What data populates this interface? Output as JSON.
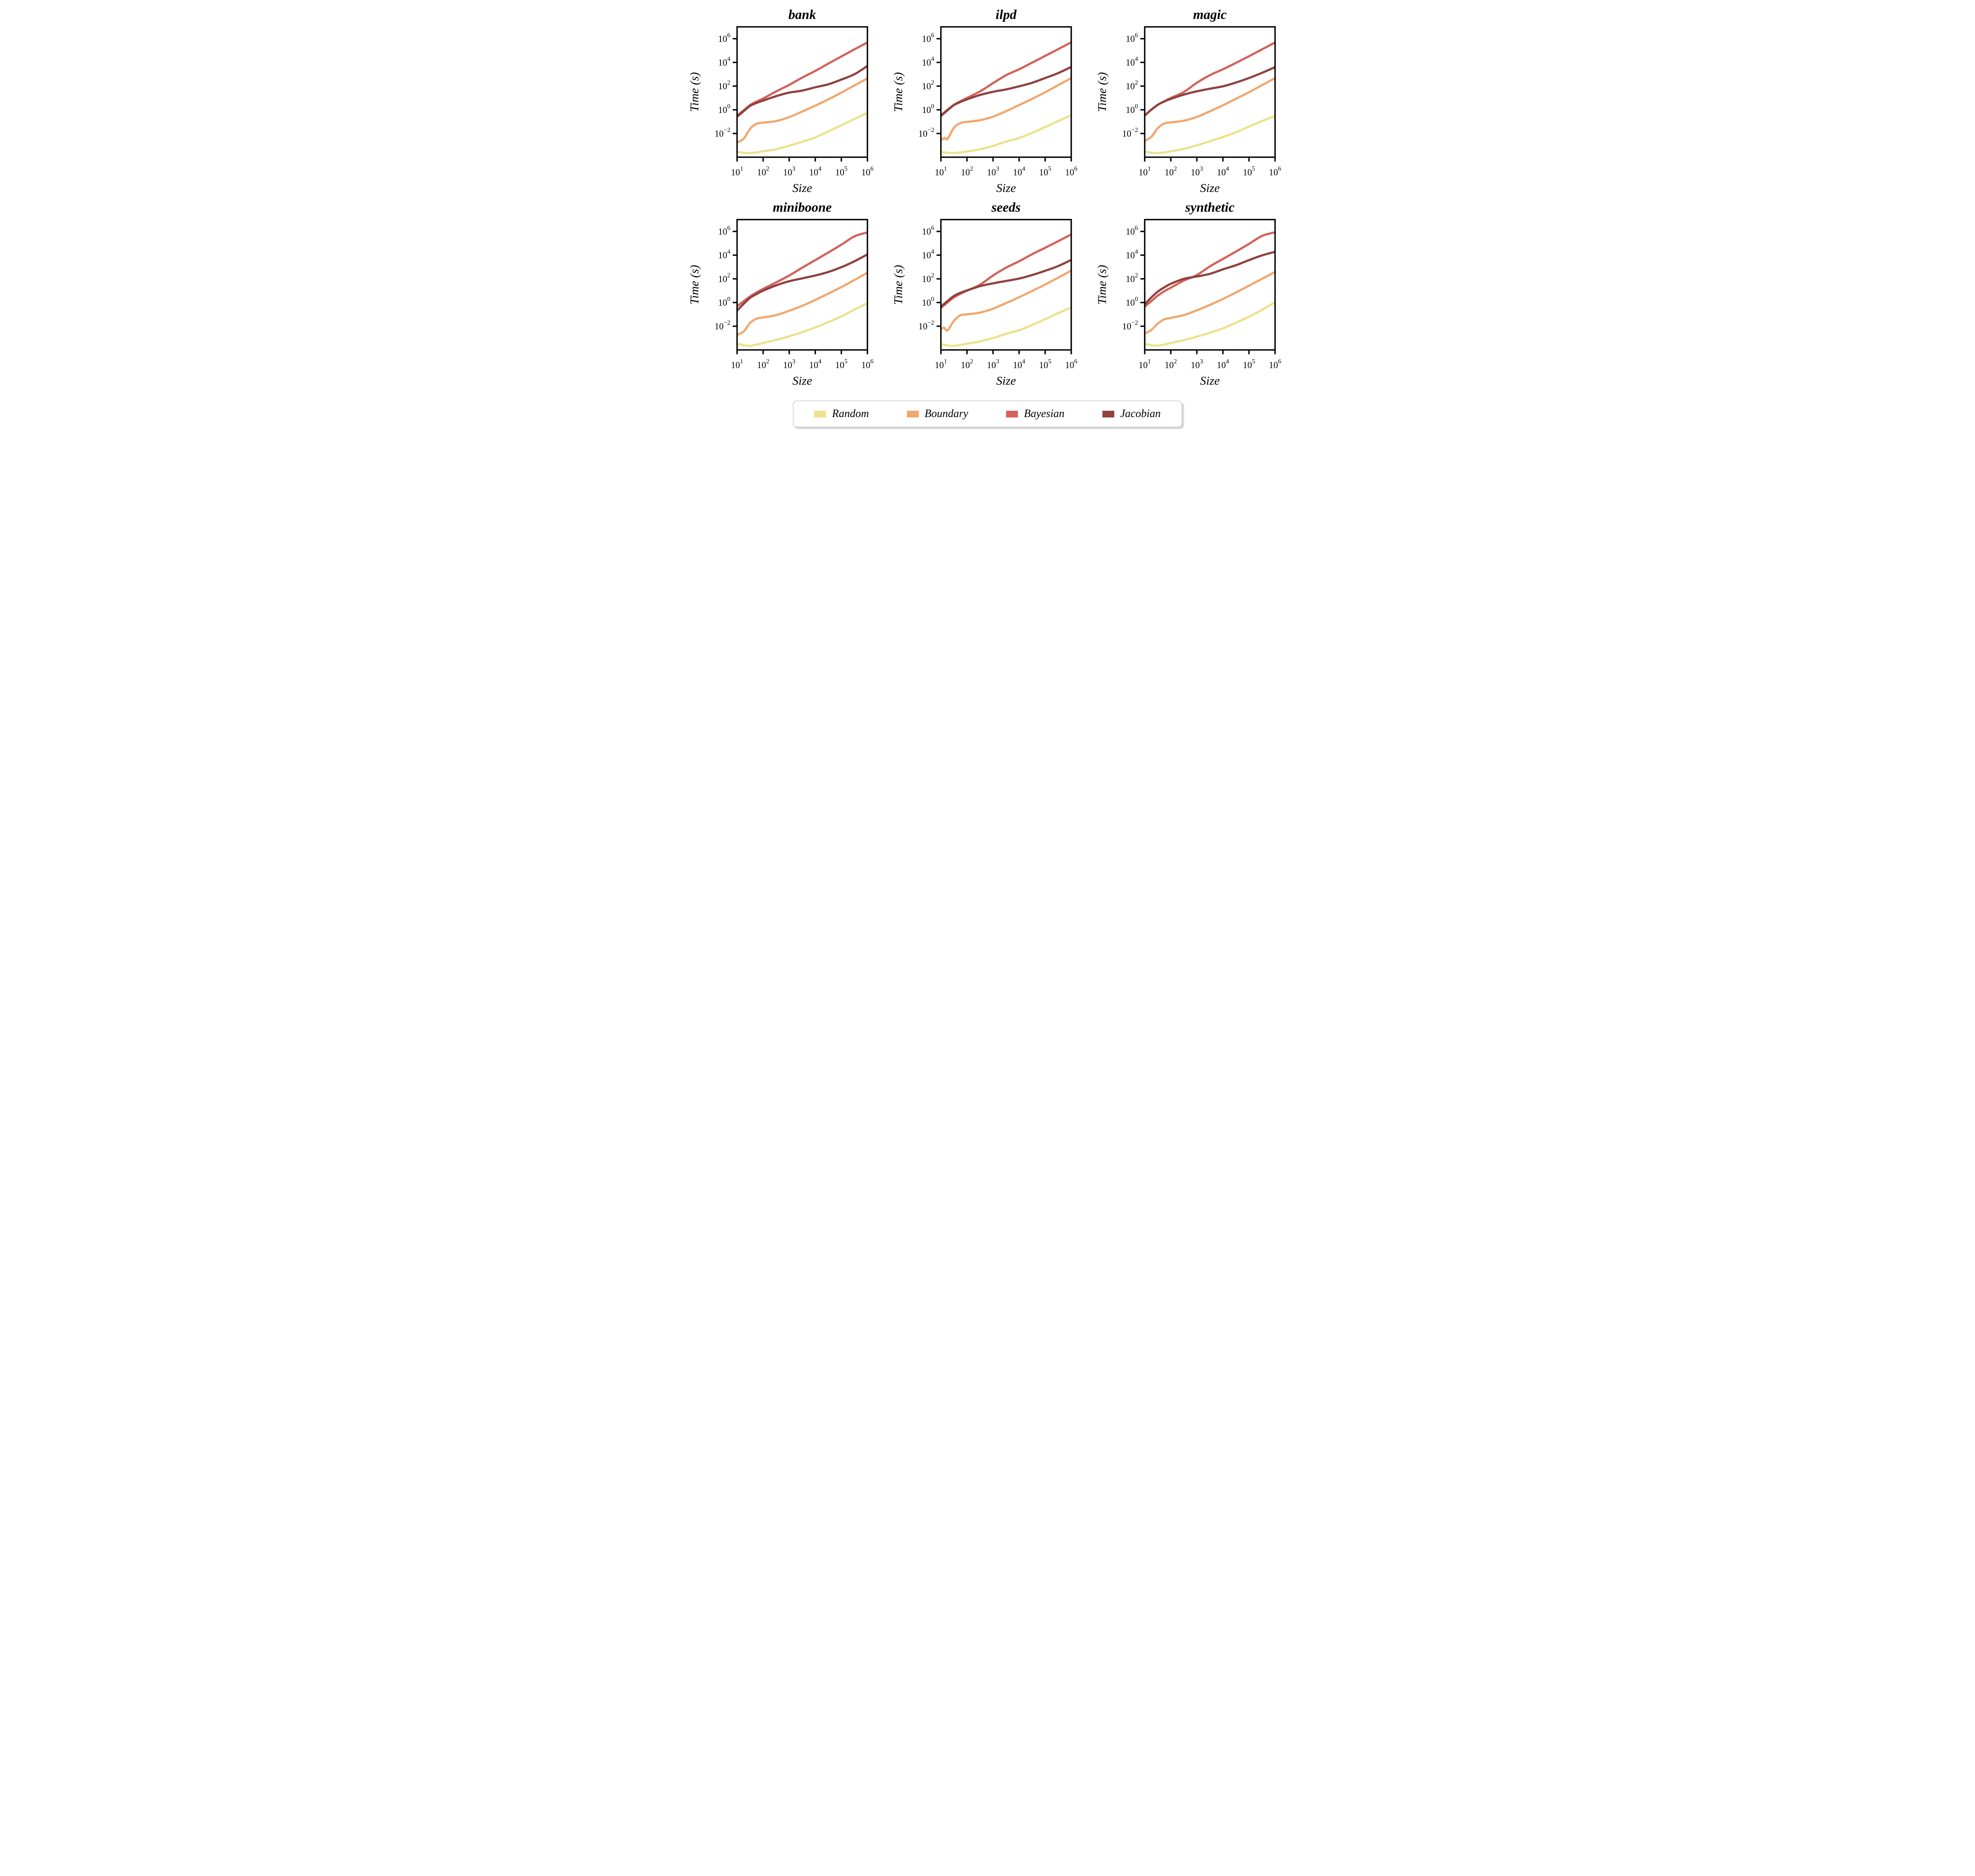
{
  "figure": {
    "rows": 2,
    "cols": 3,
    "background": "#ffffff",
    "axis_style": {
      "spine_color": "#000000",
      "spine_width": 3.5,
      "tick_length": 11,
      "tick_direction": "out",
      "font": "serif-italic-latex"
    }
  },
  "legend": {
    "position": "bottom-center",
    "border_color": "#d8d8d8",
    "items": [
      {
        "label": "Random",
        "color": "#ede28c"
      },
      {
        "label": "Boundary",
        "color": "#f1a76f"
      },
      {
        "label": "Bayesian",
        "color": "#d4615b"
      },
      {
        "label": "Jacobian",
        "color": "#8f423f"
      }
    ]
  },
  "chart_data": [
    {
      "type": "line",
      "title": "bank",
      "xlabel": "Size",
      "ylabel": "Time (s)",
      "xscale": "log",
      "yscale": "log",
      "xlim": [
        10,
        1000000
      ],
      "ylim": [
        0.0001,
        10000000
      ],
      "x_tick_exponents": [
        1,
        2,
        3,
        4,
        5,
        6
      ],
      "y_tick_exponents": [
        6,
        4,
        2,
        0,
        -2
      ],
      "grid": false,
      "series": [
        {
          "name": "Random",
          "color": "#ede28c",
          "x": [
            10,
            17.8,
            31.6,
            56.2,
            100,
            316,
            1000,
            3162,
            10000,
            31623,
            100000,
            316228,
            1000000
          ],
          "y": [
            0.000282,
            0.000234,
            0.000224,
            0.000251,
            0.000316,
            0.000468,
            0.000933,
            0.002,
            0.00468,
            0.0148,
            0.0501,
            0.166,
            0.562
          ]
        },
        {
          "name": "Boundary",
          "color": "#f1a76f",
          "x": [
            10,
            17.8,
            31.6,
            56.2,
            100,
            316,
            1000,
            3162,
            10000,
            31623,
            100000,
            316228,
            1000000
          ],
          "y": [
            0.00178,
            0.00355,
            0.0251,
            0.0661,
            0.0832,
            0.112,
            0.24,
            0.708,
            2.24,
            7.59,
            28.2,
            112,
            447
          ]
        },
        {
          "name": "Bayesian",
          "color": "#d4615b",
          "x": [
            10,
            17.8,
            31.6,
            56.2,
            100,
            316,
            1000,
            3162,
            10000,
            31623,
            100000,
            316228,
            1000000
          ],
          "y": [
            0.331,
            0.891,
            2.51,
            5.01,
            8.91,
            35.5,
            126,
            525,
            1910,
            7940,
            31600,
            126000,
            479000
          ]
        },
        {
          "name": "Jacobian",
          "color": "#8f423f",
          "x": [
            10,
            17.8,
            31.6,
            56.2,
            100,
            316,
            1000,
            3162,
            10000,
            31623,
            100000,
            316228,
            1000000
          ],
          "y": [
            0.263,
            0.759,
            2.14,
            3.8,
            6.03,
            14.1,
            28.2,
            41.7,
            79.4,
            141,
            355,
            1000,
            5010
          ]
        }
      ]
    },
    {
      "type": "line",
      "title": "ilpd",
      "xlabel": "Size",
      "ylabel": "Time (s)",
      "xscale": "log",
      "yscale": "log",
      "xlim": [
        10,
        1000000
      ],
      "ylim": [
        0.0001,
        10000000
      ],
      "x_tick_exponents": [
        1,
        2,
        3,
        4,
        5,
        6
      ],
      "y_tick_exponents": [
        6,
        4,
        2,
        0,
        -2
      ],
      "grid": false,
      "series": [
        {
          "name": "Random",
          "color": "#ede28c",
          "x": [
            10,
            17.8,
            31.6,
            56.2,
            100,
            316,
            1000,
            3162,
            10000,
            31623,
            100000,
            316228,
            1000000
          ],
          "y": [
            0.000282,
            0.000234,
            0.000224,
            0.000251,
            0.000302,
            0.000468,
            0.000891,
            0.00209,
            0.00417,
            0.0112,
            0.0355,
            0.112,
            0.355
          ]
        },
        {
          "name": "Boundary",
          "color": "#f1a76f",
          "x": [
            10,
            14,
            18,
            31.6,
            56.2,
            100,
            316,
            1000,
            3162,
            10000,
            31623,
            100000,
            316228,
            1000000
          ],
          "y": [
            0.00282,
            0.00417,
            0.00355,
            0.0302,
            0.0759,
            0.0955,
            0.132,
            0.263,
            0.759,
            2.51,
            8.32,
            30.2,
            120,
            479
          ]
        },
        {
          "name": "Bayesian",
          "color": "#d4615b",
          "x": [
            10,
            17.8,
            31.6,
            56.2,
            100,
            316,
            1000,
            3162,
            10000,
            31623,
            100000,
            316228,
            1000000
          ],
          "y": [
            0.355,
            1.0,
            2.63,
            5.25,
            10.0,
            35.5,
            178,
            832,
            2630,
            9550,
            35500,
            132000,
            501000
          ]
        },
        {
          "name": "Jacobian",
          "color": "#8f423f",
          "x": [
            10,
            17.8,
            31.6,
            56.2,
            100,
            316,
            1000,
            3162,
            10000,
            31623,
            100000,
            316228,
            1000000
          ],
          "y": [
            0.302,
            0.891,
            2.51,
            4.57,
            7.59,
            17.8,
            33.1,
            52.5,
            95.5,
            191,
            479,
            1260,
            4170
          ]
        }
      ]
    },
    {
      "type": "line",
      "title": "magic",
      "xlabel": "Size",
      "ylabel": "Time (s)",
      "xscale": "log",
      "yscale": "log",
      "xlim": [
        10,
        1000000
      ],
      "ylim": [
        0.0001,
        10000000
      ],
      "x_tick_exponents": [
        1,
        2,
        3,
        4,
        5,
        6
      ],
      "y_tick_exponents": [
        6,
        4,
        2,
        0,
        -2
      ],
      "grid": false,
      "series": [
        {
          "name": "Random",
          "color": "#ede28c",
          "x": [
            10,
            17.8,
            31.6,
            56.2,
            100,
            316,
            1000,
            3162,
            10000,
            31623,
            100000,
            316228,
            1000000
          ],
          "y": [
            0.000302,
            0.00024,
            0.000224,
            0.000251,
            0.000316,
            0.000501,
            0.001,
            0.00224,
            0.00501,
            0.0126,
            0.038,
            0.112,
            0.302
          ]
        },
        {
          "name": "Boundary",
          "color": "#f1a76f",
          "x": [
            10,
            17.8,
            31.6,
            56.2,
            100,
            316,
            1000,
            3162,
            10000,
            31623,
            100000,
            316228,
            1000000
          ],
          "y": [
            0.0024,
            0.00501,
            0.0282,
            0.0692,
            0.0871,
            0.12,
            0.251,
            0.741,
            2.4,
            8.51,
            30.2,
            120,
            468
          ]
        },
        {
          "name": "Bayesian",
          "color": "#d4615b",
          "x": [
            10,
            17.8,
            31.6,
            56.2,
            100,
            316,
            1000,
            3162,
            10000,
            31623,
            100000,
            316228,
            1000000
          ],
          "y": [
            0.331,
            1.0,
            2.63,
            5.25,
            10.0,
            31.6,
            191,
            832,
            2630,
            9120,
            33100,
            126000,
            479000
          ]
        },
        {
          "name": "Jacobian",
          "color": "#8f423f",
          "x": [
            10,
            17.8,
            31.6,
            56.2,
            100,
            316,
            1000,
            3162,
            10000,
            31623,
            100000,
            316228,
            1000000
          ],
          "y": [
            0.331,
            1.0,
            2.63,
            5.01,
            8.32,
            19.1,
            36.3,
            60.3,
            95.5,
            200,
            479,
            1320,
            3980
          ]
        }
      ]
    },
    {
      "type": "line",
      "title": "miniboone",
      "xlabel": "Size",
      "ylabel": "Time (s)",
      "xscale": "log",
      "yscale": "log",
      "xlim": [
        10,
        1000000
      ],
      "ylim": [
        0.0001,
        10000000
      ],
      "x_tick_exponents": [
        1,
        2,
        3,
        4,
        5,
        6
      ],
      "y_tick_exponents": [
        6,
        4,
        2,
        0,
        -2
      ],
      "grid": false,
      "series": [
        {
          "name": "Random",
          "color": "#ede28c",
          "x": [
            10,
            17.8,
            31.6,
            56.2,
            100,
            316,
            1000,
            3162,
            10000,
            31623,
            100000,
            316228,
            1000000
          ],
          "y": [
            0.000331,
            0.000251,
            0.000224,
            0.000282,
            0.00038,
            0.000708,
            0.00141,
            0.00316,
            0.00794,
            0.0224,
            0.0676,
            0.251,
            0.891
          ]
        },
        {
          "name": "Boundary",
          "color": "#f1a76f",
          "x": [
            10,
            17.8,
            31.6,
            56.2,
            100,
            316,
            1000,
            3162,
            10000,
            31623,
            100000,
            316228,
            1000000
          ],
          "y": [
            0.00191,
            0.00355,
            0.0191,
            0.0437,
            0.055,
            0.0871,
            0.2,
            0.525,
            1.66,
            5.62,
            20.0,
            79.4,
            331
          ]
        },
        {
          "name": "Bayesian",
          "color": "#d4615b",
          "x": [
            10,
            17.8,
            31.6,
            56.2,
            100,
            316,
            1000,
            3162,
            10000,
            31623,
            100000,
            316228,
            1000000
          ],
          "y": [
            0.479,
            1.26,
            3.31,
            7.24,
            14.1,
            50.1,
            191,
            871,
            3800,
            16600,
            75900,
            380000,
            832000
          ]
        },
        {
          "name": "Jacobian",
          "color": "#8f423f",
          "x": [
            10,
            17.8,
            31.6,
            56.2,
            100,
            316,
            1000,
            3162,
            10000,
            31623,
            100000,
            316228,
            1000000
          ],
          "y": [
            0.209,
            0.759,
            2.51,
            5.25,
            10.0,
            28.2,
            63.1,
            110,
            191,
            380,
            955,
            3020,
            11500
          ]
        }
      ]
    },
    {
      "type": "line",
      "title": "seeds",
      "xlabel": "Size",
      "ylabel": "Time (s)",
      "xscale": "log",
      "yscale": "log",
      "xlim": [
        10,
        1000000
      ],
      "ylim": [
        0.0001,
        10000000
      ],
      "x_tick_exponents": [
        1,
        2,
        3,
        4,
        5,
        6
      ],
      "y_tick_exponents": [
        6,
        4,
        2,
        0,
        -2
      ],
      "grid": false,
      "series": [
        {
          "name": "Random",
          "color": "#ede28c",
          "x": [
            10,
            17.8,
            31.6,
            56.2,
            100,
            316,
            1000,
            3162,
            10000,
            31623,
            100000,
            316228,
            1000000
          ],
          "y": [
            0.000302,
            0.00024,
            0.000224,
            0.000263,
            0.000331,
            0.000525,
            0.001,
            0.00229,
            0.00457,
            0.0126,
            0.0398,
            0.126,
            0.398
          ]
        },
        {
          "name": "Boundary",
          "color": "#f1a76f",
          "x": [
            10,
            13,
            18,
            31.6,
            56.2,
            100,
            316,
            1000,
            3162,
            10000,
            31623,
            100000,
            316228,
            1000000
          ],
          "y": [
            0.00525,
            0.00759,
            0.00457,
            0.0282,
            0.0832,
            0.1,
            0.141,
            0.302,
            0.891,
            2.82,
            9.55,
            33.1,
            126,
            501
          ]
        },
        {
          "name": "Bayesian",
          "color": "#d4615b",
          "x": [
            10,
            17.8,
            31.6,
            56.2,
            100,
            316,
            1000,
            3162,
            10000,
            31623,
            100000,
            316228,
            1000000
          ],
          "y": [
            0.355,
            1.0,
            2.75,
            5.5,
            10.0,
            31.6,
            191,
            871,
            3020,
            12000,
            41700,
            151000,
            562000
          ]
        },
        {
          "name": "Jacobian",
          "color": "#8f423f",
          "x": [
            10,
            17.8,
            31.6,
            56.2,
            100,
            316,
            1000,
            3162,
            10000,
            31623,
            100000,
            316228,
            1000000
          ],
          "y": [
            0.447,
            1.32,
            3.55,
            6.61,
            10.5,
            24.0,
            41.7,
            66.1,
            105,
            209,
            479,
            1200,
            3980
          ]
        }
      ]
    },
    {
      "type": "line",
      "title": "synthetic",
      "xlabel": "Size",
      "ylabel": "Time (s)",
      "xscale": "log",
      "yscale": "log",
      "xlim": [
        10,
        1000000
      ],
      "ylim": [
        0.0001,
        10000000
      ],
      "x_tick_exponents": [
        1,
        2,
        3,
        4,
        5,
        6
      ],
      "y_tick_exponents": [
        6,
        4,
        2,
        0,
        -2
      ],
      "grid": false,
      "series": [
        {
          "name": "Random",
          "color": "#ede28c",
          "x": [
            10,
            17.8,
            31.6,
            56.2,
            100,
            316,
            1000,
            3162,
            10000,
            31623,
            100000,
            316228,
            1000000
          ],
          "y": [
            0.000331,
            0.000251,
            0.000229,
            0.000282,
            0.00038,
            0.000661,
            0.00132,
            0.00282,
            0.00661,
            0.02,
            0.0631,
            0.24,
            1.07
          ]
        },
        {
          "name": "Boundary",
          "color": "#f1a76f",
          "x": [
            10,
            17.8,
            31.6,
            56.2,
            100,
            316,
            1000,
            3162,
            10000,
            31623,
            100000,
            316228,
            1000000
          ],
          "y": [
            0.0024,
            0.00479,
            0.0166,
            0.038,
            0.0501,
            0.0871,
            0.219,
            0.631,
            2.0,
            7.08,
            26.3,
            100,
            380
          ]
        },
        {
          "name": "Bayesian",
          "color": "#d4615b",
          "x": [
            10,
            17.8,
            31.6,
            56.2,
            100,
            316,
            1000,
            3162,
            10000,
            31623,
            100000,
            316228,
            1000000
          ],
          "y": [
            0.447,
            1.32,
            3.8,
            8.91,
            17.8,
            70.8,
            209,
            1120,
            4790,
            20000,
            89100,
            417000,
            851000
          ]
        },
        {
          "name": "Jacobian",
          "color": "#8f423f",
          "x": [
            10,
            17.8,
            31.6,
            56.2,
            100,
            316,
            1000,
            3162,
            10000,
            31623,
            100000,
            316228,
            1000000
          ],
          "y": [
            0.708,
            2.63,
            8.32,
            19.1,
            38.0,
            100,
            158,
            263,
            631,
            1410,
            3800,
            9550,
            19100
          ]
        }
      ]
    }
  ]
}
